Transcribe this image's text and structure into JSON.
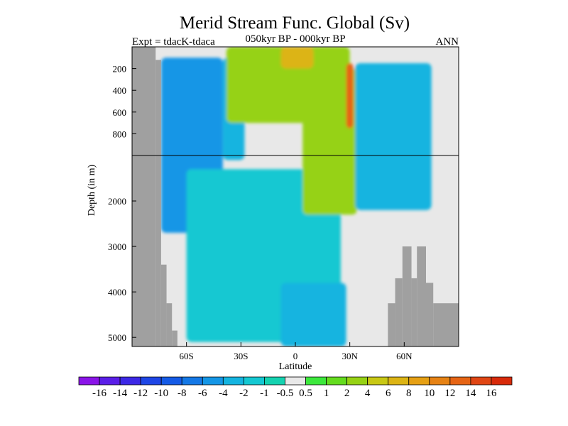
{
  "chart_data": {
    "type": "heatmap",
    "title": "Merid Stream Func. Global (Sv)",
    "left_label": "Expt = tdacK-tdaca",
    "center_label": "050kyr BP - 000kyr BP",
    "right_label": "ANN",
    "xlabel": "Latitude",
    "ylabel": "Depth (in m)",
    "xlim": [
      -90,
      90
    ],
    "ylim": [
      0,
      5200
    ],
    "depth_axis": "split at 1000 m: upper 0-1000 m, lower 1000-5200 m",
    "x_ticks": [
      {
        "value": -60,
        "label": "60S"
      },
      {
        "value": -30,
        "label": "30S"
      },
      {
        "value": 0,
        "label": "0"
      },
      {
        "value": 30,
        "label": "30N"
      },
      {
        "value": 60,
        "label": "60N"
      }
    ],
    "y_ticks_upper": [
      {
        "value": 200,
        "label": "200"
      },
      {
        "value": 400,
        "label": "400"
      },
      {
        "value": 600,
        "label": "600"
      },
      {
        "value": 800,
        "label": "800"
      }
    ],
    "y_ticks_lower": [
      {
        "value": 2000,
        "label": "2000"
      },
      {
        "value": 3000,
        "label": "3000"
      },
      {
        "value": 4000,
        "label": "4000"
      },
      {
        "value": 5000,
        "label": "5000"
      }
    ],
    "colorbar": {
      "labels": [
        "-16",
        "-14",
        "-12",
        "-10",
        "-8",
        "-6",
        "-4",
        "-2",
        "-1",
        "-0.5",
        "0.5",
        "1",
        "2",
        "4",
        "6",
        "8",
        "10",
        "12",
        "14",
        "16"
      ],
      "colors": [
        "#8a14e8",
        "#5a1ee8",
        "#3c28e6",
        "#1e46e6",
        "#145ae6",
        "#1478e6",
        "#1496e6",
        "#14b4e0",
        "#14c8d2",
        "#14d2b0",
        "#e8e8e8",
        "#3ce83c",
        "#64dc1e",
        "#96d214",
        "#c8c814",
        "#dcb414",
        "#e6a014",
        "#e68214",
        "#e66414",
        "#e04614",
        "#d82a0a"
      ]
    },
    "land_mask_color": "#a0a0a0",
    "background_color": "#e8e8e8",
    "fields": [
      {
        "name": "southern-ocean-negative",
        "value": -5,
        "lat_range": [
          -74,
          -40
        ],
        "depth_range": [
          100,
          2700
        ]
      },
      {
        "name": "southern-upper-weak-negative",
        "value": -3,
        "lat_range": [
          -40,
          -28
        ],
        "depth_range": [
          100,
          1100
        ]
      },
      {
        "name": "southern-deep-weak-negative",
        "value": -1.5,
        "lat_range": [
          -60,
          25
        ],
        "depth_range": [
          1300,
          5100
        ]
      },
      {
        "name": "antarctic-bottom-cell",
        "value": -3,
        "lat_range": [
          -8,
          28
        ],
        "depth_range": [
          3800,
          5200
        ]
      },
      {
        "name": "tropical-upper-positive",
        "value": 3,
        "lat_range": [
          -38,
          30
        ],
        "depth_range": [
          0,
          700
        ]
      },
      {
        "name": "tropical-core-positive",
        "value": 6,
        "lat_range": [
          -8,
          10
        ],
        "depth_range": [
          0,
          200
        ]
      },
      {
        "name": "north-atlantic-positive",
        "value": 2,
        "lat_range": [
          4,
          34
        ],
        "depth_range": [
          200,
          2300
        ]
      },
      {
        "name": "northern-negative",
        "value": -3.5,
        "lat_range": [
          33,
          75
        ],
        "depth_range": [
          150,
          2200
        ]
      },
      {
        "name": "near-surface-narrow-max",
        "value": 12,
        "lat_range": [
          28,
          32
        ],
        "depth_range": [
          150,
          750
        ]
      }
    ],
    "land_mask": [
      {
        "lat_range": [
          -90,
          -77
        ],
        "depth_range": [
          0,
          5200
        ]
      },
      {
        "lat_range": [
          -77,
          -74
        ],
        "depth_range": [
          120,
          5200
        ]
      },
      {
        "lat_range": [
          -74,
          -71
        ],
        "depth_range": [
          3400,
          5200
        ]
      },
      {
        "lat_range": [
          -71,
          -68
        ],
        "depth_range": [
          4250,
          5200
        ]
      },
      {
        "lat_range": [
          -68,
          -65
        ],
        "depth_range": [
          4850,
          5200
        ]
      },
      {
        "lat_range": [
          51,
          55
        ],
        "depth_range": [
          4250,
          5200
        ]
      },
      {
        "lat_range": [
          55,
          59
        ],
        "depth_range": [
          3700,
          5200
        ]
      },
      {
        "lat_range": [
          59,
          64
        ],
        "depth_range": [
          3000,
          5200
        ]
      },
      {
        "lat_range": [
          64,
          67
        ],
        "depth_range": [
          3700,
          5200
        ]
      },
      {
        "lat_range": [
          67,
          72
        ],
        "depth_range": [
          3000,
          5200
        ]
      },
      {
        "lat_range": [
          72,
          76
        ],
        "depth_range": [
          3800,
          5200
        ]
      },
      {
        "lat_range": [
          76,
          90
        ],
        "depth_range": [
          4250,
          5200
        ]
      }
    ]
  }
}
